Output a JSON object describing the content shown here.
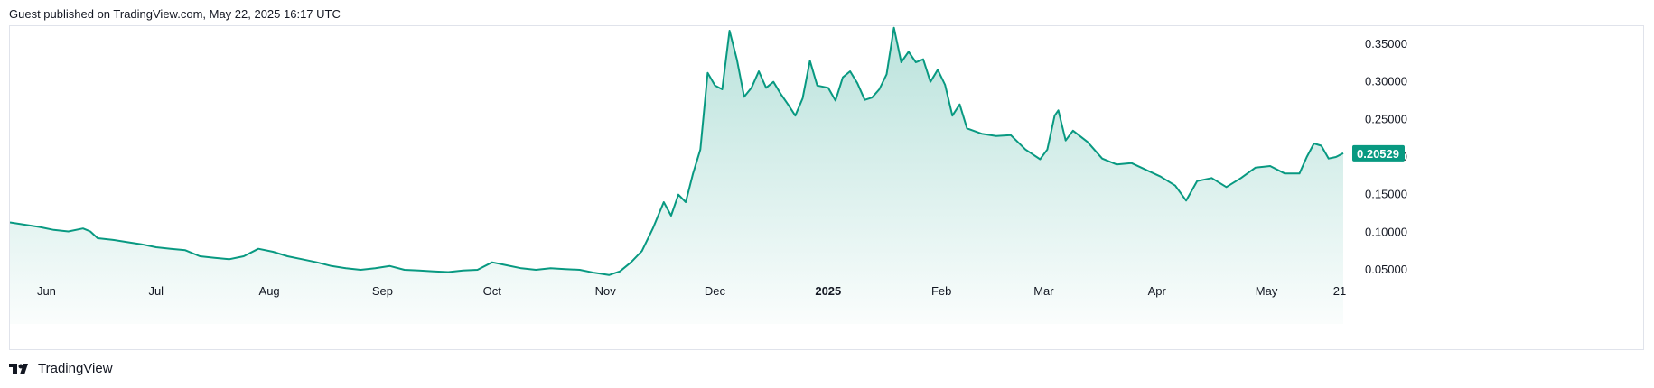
{
  "header": {
    "text": "Guest published on TradingView.com, May 22, 2025 16:17 UTC"
  },
  "footer": {
    "brand": "TradingView",
    "logo_icon": "tradingview-logo-icon"
  },
  "colors": {
    "line": "#089981",
    "fill_top": "#089981",
    "last_price_bg": "#089981",
    "border": "#e0e3eb"
  },
  "chart_data": {
    "type": "area",
    "title": "",
    "xlabel": "",
    "ylabel": "",
    "ylim": [
      0.0,
      0.375
    ],
    "y_ticks": [
      "0.35000",
      "0.30000",
      "0.25000",
      "0.20000",
      "0.15000",
      "0.10000",
      "0.05000"
    ],
    "x_ticks": [
      {
        "label": "Jun",
        "date": "2024-06-01",
        "bold": false
      },
      {
        "label": "Jul",
        "date": "2024-07-01",
        "bold": false
      },
      {
        "label": "Aug",
        "date": "2024-08-01",
        "bold": false
      },
      {
        "label": "Sep",
        "date": "2024-09-01",
        "bold": false
      },
      {
        "label": "Oct",
        "date": "2024-10-01",
        "bold": false
      },
      {
        "label": "Nov",
        "date": "2024-11-01",
        "bold": false
      },
      {
        "label": "Dec",
        "date": "2024-12-01",
        "bold": false
      },
      {
        "label": "2025",
        "date": "2025-01-01",
        "bold": true
      },
      {
        "label": "Feb",
        "date": "2025-02-01",
        "bold": false
      },
      {
        "label": "Mar",
        "date": "2025-03-01",
        "bold": false
      },
      {
        "label": "Apr",
        "date": "2025-04-01",
        "bold": false
      },
      {
        "label": "May",
        "date": "2025-05-01",
        "bold": false
      },
      {
        "label": "21",
        "date": "2025-05-21",
        "bold": false
      }
    ],
    "last_price": "0.20529",
    "grid": false,
    "series": [
      {
        "points": [
          [
            "2024-05-22",
            0.113
          ],
          [
            "2024-05-26",
            0.11
          ],
          [
            "2024-05-30",
            0.107
          ],
          [
            "2024-06-03",
            0.103
          ],
          [
            "2024-06-07",
            0.101
          ],
          [
            "2024-06-11",
            0.105
          ],
          [
            "2024-06-13",
            0.101
          ],
          [
            "2024-06-15",
            0.092
          ],
          [
            "2024-06-19",
            0.09
          ],
          [
            "2024-06-23",
            0.087
          ],
          [
            "2024-06-27",
            0.084
          ],
          [
            "2024-07-01",
            0.08
          ],
          [
            "2024-07-05",
            0.078
          ],
          [
            "2024-07-09",
            0.076
          ],
          [
            "2024-07-13",
            0.068
          ],
          [
            "2024-07-17",
            0.066
          ],
          [
            "2024-07-21",
            0.064
          ],
          [
            "2024-07-25",
            0.068
          ],
          [
            "2024-07-29",
            0.078
          ],
          [
            "2024-08-02",
            0.074
          ],
          [
            "2024-08-06",
            0.068
          ],
          [
            "2024-08-10",
            0.064
          ],
          [
            "2024-08-14",
            0.06
          ],
          [
            "2024-08-18",
            0.055
          ],
          [
            "2024-08-22",
            0.052
          ],
          [
            "2024-08-26",
            0.05
          ],
          [
            "2024-08-30",
            0.052
          ],
          [
            "2024-09-03",
            0.055
          ],
          [
            "2024-09-07",
            0.05
          ],
          [
            "2024-09-11",
            0.049
          ],
          [
            "2024-09-15",
            0.048
          ],
          [
            "2024-09-19",
            0.047
          ],
          [
            "2024-09-23",
            0.049
          ],
          [
            "2024-09-27",
            0.05
          ],
          [
            "2024-10-01",
            0.06
          ],
          [
            "2024-10-05",
            0.056
          ],
          [
            "2024-10-09",
            0.052
          ],
          [
            "2024-10-13",
            0.05
          ],
          [
            "2024-10-17",
            0.052
          ],
          [
            "2024-10-21",
            0.051
          ],
          [
            "2024-10-25",
            0.05
          ],
          [
            "2024-10-29",
            0.046
          ],
          [
            "2024-11-02",
            0.043
          ],
          [
            "2024-11-05",
            0.048
          ],
          [
            "2024-11-08",
            0.06
          ],
          [
            "2024-11-11",
            0.075
          ],
          [
            "2024-11-14",
            0.105
          ],
          [
            "2024-11-17",
            0.14
          ],
          [
            "2024-11-19",
            0.122
          ],
          [
            "2024-11-21",
            0.15
          ],
          [
            "2024-11-23",
            0.14
          ],
          [
            "2024-11-25",
            0.178
          ],
          [
            "2024-11-27",
            0.21
          ],
          [
            "2024-11-29",
            0.312
          ],
          [
            "2024-12-01",
            0.295
          ],
          [
            "2024-12-03",
            0.29
          ],
          [
            "2024-12-05",
            0.368
          ],
          [
            "2024-12-07",
            0.33
          ],
          [
            "2024-12-09",
            0.28
          ],
          [
            "2024-12-11",
            0.292
          ],
          [
            "2024-12-13",
            0.314
          ],
          [
            "2024-12-15",
            0.292
          ],
          [
            "2024-12-17",
            0.3
          ],
          [
            "2024-12-19",
            0.284
          ],
          [
            "2024-12-21",
            0.27
          ],
          [
            "2024-12-23",
            0.255
          ],
          [
            "2024-12-25",
            0.278
          ],
          [
            "2024-12-27",
            0.328
          ],
          [
            "2024-12-29",
            0.295
          ],
          [
            "2025-01-01",
            0.292
          ],
          [
            "2025-01-03",
            0.275
          ],
          [
            "2025-01-05",
            0.306
          ],
          [
            "2025-01-07",
            0.314
          ],
          [
            "2025-01-09",
            0.298
          ],
          [
            "2025-01-11",
            0.276
          ],
          [
            "2025-01-13",
            0.279
          ],
          [
            "2025-01-15",
            0.29
          ],
          [
            "2025-01-17",
            0.31
          ],
          [
            "2025-01-19",
            0.372
          ],
          [
            "2025-01-21",
            0.326
          ],
          [
            "2025-01-23",
            0.34
          ],
          [
            "2025-01-25",
            0.326
          ],
          [
            "2025-01-27",
            0.33
          ],
          [
            "2025-01-29",
            0.3
          ],
          [
            "2025-01-31",
            0.316
          ],
          [
            "2025-02-02",
            0.296
          ],
          [
            "2025-02-04",
            0.255
          ],
          [
            "2025-02-06",
            0.27
          ],
          [
            "2025-02-08",
            0.238
          ],
          [
            "2025-02-12",
            0.231
          ],
          [
            "2025-02-16",
            0.228
          ],
          [
            "2025-02-20",
            0.229
          ],
          [
            "2025-02-24",
            0.21
          ],
          [
            "2025-02-28",
            0.197
          ],
          [
            "2025-03-02",
            0.21
          ],
          [
            "2025-03-04",
            0.255
          ],
          [
            "2025-03-05",
            0.262
          ],
          [
            "2025-03-07",
            0.222
          ],
          [
            "2025-03-09",
            0.235
          ],
          [
            "2025-03-13",
            0.22
          ],
          [
            "2025-03-17",
            0.198
          ],
          [
            "2025-03-21",
            0.19
          ],
          [
            "2025-03-25",
            0.192
          ],
          [
            "2025-03-29",
            0.183
          ],
          [
            "2025-04-02",
            0.174
          ],
          [
            "2025-04-06",
            0.162
          ],
          [
            "2025-04-09",
            0.142
          ],
          [
            "2025-04-12",
            0.168
          ],
          [
            "2025-04-16",
            0.172
          ],
          [
            "2025-04-20",
            0.16
          ],
          [
            "2025-04-24",
            0.172
          ],
          [
            "2025-04-28",
            0.186
          ],
          [
            "2025-05-02",
            0.188
          ],
          [
            "2025-05-06",
            0.178
          ],
          [
            "2025-05-10",
            0.178
          ],
          [
            "2025-05-12",
            0.2
          ],
          [
            "2025-05-14",
            0.218
          ],
          [
            "2025-05-16",
            0.215
          ],
          [
            "2025-05-18",
            0.198
          ],
          [
            "2025-05-20",
            0.2
          ],
          [
            "2025-05-22",
            0.205
          ]
        ]
      }
    ]
  }
}
